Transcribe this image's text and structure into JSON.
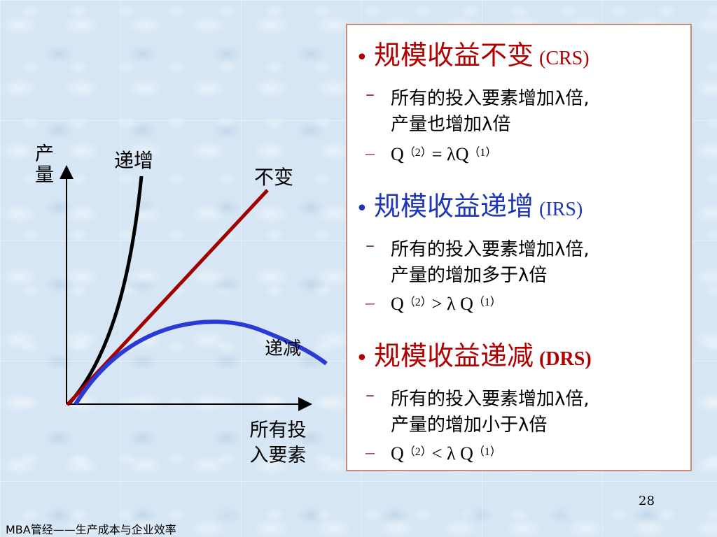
{
  "chart": {
    "y_axis_label": "产量",
    "x_axis_label_line1": "所有投",
    "x_axis_label_line2": "入要素",
    "curve_labels": {
      "increasing": "递增",
      "constant": "不变",
      "decreasing": "递减"
    },
    "colors": {
      "increasing": "#000000",
      "constant": "#a10000",
      "decreasing": "#2a3ad8"
    }
  },
  "panel": {
    "crs": {
      "title": "规模收益不变",
      "abbr": "(CRS)",
      "desc_line1": "所有的投入要素增加λ倍,",
      "desc_line2": "产量也增加λ倍",
      "formula_lhs": "Q",
      "sup_left": "（2）",
      "formula_mid": "= λQ",
      "sup_right": "（1）"
    },
    "irs": {
      "title": "规模收益递增",
      "abbr": "(IRS)",
      "desc_line1": "所有的投入要素增加λ倍,",
      "desc_line2": "产量的增加多于λ倍",
      "formula_lhs": "Q",
      "sup_left": "（2）",
      "formula_mid": "> λ Q",
      "sup_right": "（1）"
    },
    "drs": {
      "title": "规模收益递减",
      "abbr": "(DRS)",
      "desc_line1": "所有的投入要素增加λ倍,",
      "desc_line2": "产量的增加小于λ倍",
      "formula_lhs": "Q",
      "sup_left": "（2）",
      "formula_mid": "< λ Q",
      "sup_right": "（1）"
    },
    "bullet": "•",
    "dash": "–",
    "colors": {
      "red": "#b00000",
      "blue": "#1f37b6"
    }
  },
  "page_number": "28",
  "footer": "MBA管经——生产成本与企业效率"
}
